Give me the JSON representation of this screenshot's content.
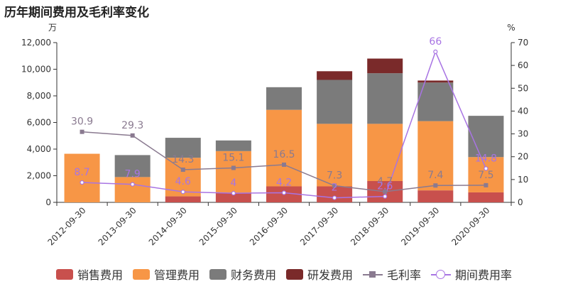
{
  "title": "历年期间费用及毛利率变化",
  "chart_data": {
    "type": "bar",
    "stacked": true,
    "categories": [
      "2012-09-30",
      "2013-09-30",
      "2014-09-30",
      "2015-09-30",
      "2016-09-30",
      "2017-09-30",
      "2018-09-30",
      "2019-09-30",
      "2020-09-30"
    ],
    "left_axis": {
      "unit": "万",
      "min": 0,
      "max": 12000,
      "ticks": [
        "0",
        "2,000",
        "4,000",
        "6,000",
        "8,000",
        "10,000",
        "12,000"
      ]
    },
    "right_axis": {
      "unit": "%",
      "min": 0,
      "max": 70,
      "ticks": [
        "0",
        "10",
        "20",
        "30",
        "40",
        "50",
        "60",
        "70"
      ]
    },
    "series": [
      {
        "name": "销售费用",
        "kind": "bar",
        "color": "#c8504d",
        "values": [
          0,
          0,
          450,
          700,
          1200,
          1200,
          1600,
          900,
          750
        ]
      },
      {
        "name": "管理费用",
        "kind": "bar",
        "color": "#f79646",
        "values": [
          3650,
          1900,
          2900,
          3150,
          5750,
          4700,
          4300,
          5200,
          2650
        ]
      },
      {
        "name": "财务费用",
        "kind": "bar",
        "color": "#7b7b7b",
        "values": [
          0,
          1650,
          1500,
          800,
          1700,
          3300,
          3800,
          2900,
          3100
        ]
      },
      {
        "name": "研发费用",
        "kind": "bar",
        "color": "#7a2a2a",
        "values": [
          0,
          0,
          0,
          0,
          0,
          650,
          1100,
          150,
          0
        ]
      },
      {
        "name": "毛利率",
        "kind": "line",
        "axis": "right",
        "marker": "square",
        "color": "#8a7a90",
        "values": [
          30.9,
          29.3,
          14.3,
          15.1,
          16.5,
          7.3,
          4.7,
          7.4,
          7.5
        ],
        "labels": [
          "30.9",
          "29.3",
          "14.3",
          "15.1",
          "16.5",
          "7.3",
          "4.7",
          "7.4",
          "7.5"
        ]
      },
      {
        "name": "期间费用率",
        "kind": "line",
        "axis": "right",
        "marker": "circle",
        "color": "#a874e3",
        "values": [
          8.7,
          7.9,
          4.6,
          4.0,
          4.2,
          2.0,
          2.6,
          66,
          14.8
        ],
        "labels": [
          "8.7",
          "7.9",
          "4.6",
          "4",
          "4.2",
          "2",
          "2.6",
          "66",
          "14.8"
        ]
      }
    ],
    "legend": "bottom",
    "grid": false
  },
  "legend_items": [
    {
      "label": "销售费用",
      "color": "#c8504d",
      "type": "box"
    },
    {
      "label": "管理费用",
      "color": "#f79646",
      "type": "box"
    },
    {
      "label": "财务费用",
      "color": "#7b7b7b",
      "type": "box"
    },
    {
      "label": "研发费用",
      "color": "#7a2a2a",
      "type": "box"
    },
    {
      "label": "毛利率",
      "color": "#8a7a90",
      "type": "square"
    },
    {
      "label": "期间费用率",
      "color": "#a874e3",
      "type": "circle"
    }
  ]
}
